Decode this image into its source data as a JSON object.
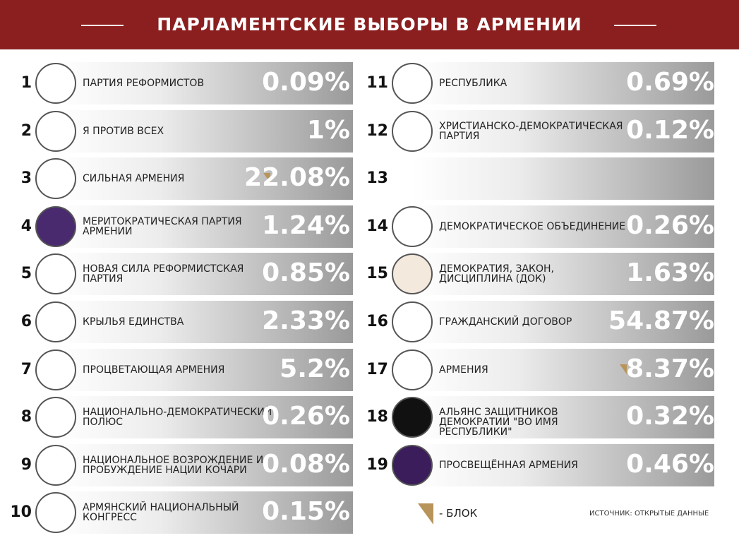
{
  "header": {
    "title": "ПАРЛАМЕНТСКИЕ ВЫБОРЫ В АРМЕНИИ"
  },
  "parties": [
    {
      "number": 1,
      "name": "ПАРТИЯ РЕФОРМИСТОВ",
      "result": "0.09%"
    },
    {
      "number": 2,
      "name": "Я ПРОТИВ ВСЕХ",
      "result": "1%"
    },
    {
      "number": 3,
      "name": "СИЛЬНАЯ АРМЕНИЯ",
      "result": "22.08%",
      "bloc": true
    },
    {
      "number": 4,
      "name": "МЕРИТОКРАТИЧЕСКАЯ ПАРТИЯ АРМЕНИИ",
      "result": "1.24%"
    },
    {
      "number": 5,
      "name": "НОВАЯ СИЛА РЕФОРМИСТСКАЯ ПАРТИЯ",
      "result": "0.85%"
    },
    {
      "number": 6,
      "name": "КРЫЛЬЯ ЕДИНСТВА",
      "result": "2.33%"
    },
    {
      "number": 7,
      "name": "ПРОЦВЕТАЮЩАЯ АРМЕНИЯ",
      "result": "5.2%"
    },
    {
      "number": 8,
      "name": "НАЦИОНАЛЬНО-ДЕМОКРАТИЧЕСКИЙ ПОЛЮС",
      "result": "0.26%"
    },
    {
      "number": 9,
      "name": "НАЦИОНАЛЬНОЕ ВОЗРОЖДЕНИЕ И ПРОБУЖДЕНИЕ НАЦИИ КОЧАРИ",
      "result": "0.08%"
    },
    {
      "number": 10,
      "name": "АРМЯНСКИЙ НАЦИОНАЛЬНЫЙ КОНГРЕСС",
      "result": "0.15%"
    },
    {
      "number": 11,
      "name": "РЕСПУБЛИКА",
      "result": "0.69%"
    },
    {
      "number": 12,
      "name": "ХРИСТИАНСКО-ДЕМОКРАТИЧЕСКАЯ ПАРТИЯ",
      "result": "0.12%"
    },
    {
      "number": 13
    },
    {
      "number": 14,
      "name": "ДЕМОКРАТИЧЕСКОЕ ОБЪЕДИНЕНИЕ",
      "result": "0.26%"
    },
    {
      "number": 15,
      "name": "ДЕМОКРАТИЯ, ЗАКОН, ДИСЦИПЛИНА (ДОК)",
      "result": "1.63%"
    },
    {
      "number": 16,
      "name": "ГРАЖДАНСКИЙ ДОГОВОР",
      "result": "54.87%"
    },
    {
      "number": 17,
      "name": "АРМЕНИЯ",
      "result": "8.37%",
      "bloc": true
    },
    {
      "number": 18,
      "name": "АЛЬЯНС ЗАЩИТНИКОВ ДЕМОКРАТИИ \"ВО ИМЯ РЕСПУБЛИКИ\"",
      "result": "0.32%"
    },
    {
      "number": 19,
      "name": "ПРОСВЕЩЁННАЯ АРМЕНИЯ",
      "result": "0.46%"
    }
  ],
  "legend": {
    "label": "- БЛОК"
  },
  "source": "ИСТОЧНИК: ОТКРЫТЫЕ ДАННЫЕ"
}
